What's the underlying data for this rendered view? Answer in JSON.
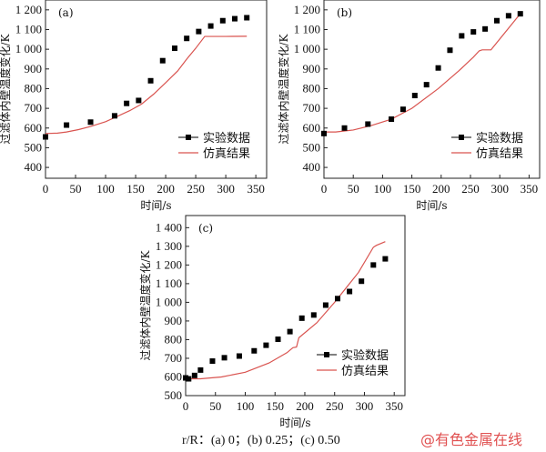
{
  "chart_data": [
    {
      "type": "scatter+line",
      "panel_label": "(a)",
      "xlabel": "时间/s",
      "ylabel": "过滤体内壁温度变化/K",
      "xlim": [
        0,
        368
      ],
      "ylim": [
        345,
        1250
      ],
      "xticks": [
        0,
        50,
        100,
        150,
        200,
        250,
        300,
        350
      ],
      "yticks": [
        400,
        500,
        600,
        700,
        800,
        900,
        1000,
        1100,
        1200
      ],
      "ytick_labels": [
        "400",
        "500",
        "600",
        "700",
        "800",
        "900",
        "1 000",
        "1 100",
        "1 200"
      ],
      "legend_position": "bottom-right",
      "series": [
        {
          "name": "实验数据",
          "kind": "scatter",
          "color": "#000000",
          "x": [
            0,
            35,
            75,
            115,
            135,
            155,
            175,
            195,
            215,
            235,
            255,
            275,
            295,
            315,
            335
          ],
          "y": [
            555,
            615,
            630,
            662,
            725,
            740,
            840,
            942,
            1005,
            1055,
            1090,
            1118,
            1145,
            1155,
            1160
          ]
        },
        {
          "name": "仿真结果",
          "kind": "line",
          "color": "#d9534f",
          "x": [
            0,
            20,
            35,
            55,
            75,
            100,
            120,
            140,
            160,
            180,
            200,
            220,
            235,
            250,
            265,
            300,
            335
          ],
          "y": [
            572,
            574,
            580,
            592,
            608,
            632,
            660,
            688,
            722,
            772,
            830,
            890,
            950,
            1005,
            1065,
            1065,
            1066
          ]
        }
      ]
    },
    {
      "type": "scatter+line",
      "panel_label": "(b)",
      "xlabel": "时间/s",
      "ylabel": "过滤体内壁温度变化/K",
      "xlim": [
        0,
        368
      ],
      "ylim": [
        345,
        1250
      ],
      "xticks": [
        0,
        50,
        100,
        150,
        200,
        250,
        300,
        350
      ],
      "yticks": [
        400,
        500,
        600,
        700,
        800,
        900,
        1000,
        1100,
        1200
      ],
      "ytick_labels": [
        "400",
        "500",
        "600",
        "700",
        "800",
        "900",
        "1 000",
        "1 100",
        "1 200"
      ],
      "legend_position": "bottom-right",
      "series": [
        {
          "name": "实验数据",
          "kind": "scatter",
          "color": "#000000",
          "x": [
            0,
            35,
            75,
            115,
            135,
            155,
            175,
            195,
            215,
            235,
            255,
            275,
            295,
            315,
            335
          ],
          "y": [
            572,
            600,
            620,
            645,
            695,
            765,
            820,
            905,
            995,
            1068,
            1088,
            1103,
            1145,
            1170,
            1180
          ]
        },
        {
          "name": "仿真结果",
          "kind": "line",
          "color": "#d9534f",
          "x": [
            0,
            20,
            50,
            80,
            115,
            150,
            195,
            230,
            255,
            265,
            270,
            285,
            335
          ],
          "y": [
            580,
            580,
            590,
            612,
            645,
            700,
            800,
            890,
            960,
            992,
            997,
            997,
            1180
          ]
        }
      ]
    },
    {
      "type": "scatter+line",
      "panel_label": "(c)",
      "xlabel": "时间/s",
      "ylabel": "过滤体内壁温度变化/K",
      "xlim": [
        0,
        368
      ],
      "ylim": [
        500,
        1465
      ],
      "xticks": [
        0,
        50,
        100,
        150,
        200,
        250,
        300,
        350
      ],
      "yticks": [
        500,
        600,
        700,
        800,
        900,
        1000,
        1100,
        1200,
        1300,
        1400
      ],
      "ytick_labels": [
        "500",
        "600",
        "700",
        "800",
        "900",
        "1 000",
        "1 100",
        "1 200",
        "1 300",
        "1 400"
      ],
      "legend_position": "bottom-right",
      "series": [
        {
          "name": "实验数据",
          "kind": "scatter",
          "color": "#000000",
          "x": [
            0,
            5,
            15,
            25,
            45,
            65,
            90,
            115,
            135,
            155,
            175,
            195,
            215,
            235,
            255,
            275,
            295,
            315,
            335
          ],
          "y": [
            595,
            590,
            608,
            637,
            685,
            703,
            712,
            740,
            770,
            802,
            843,
            915,
            932,
            985,
            1020,
            1058,
            1113,
            1200,
            1233
          ]
        },
        {
          "name": "仿真结果",
          "kind": "line",
          "color": "#d9534f",
          "x": [
            0,
            25,
            60,
            100,
            140,
            170,
            180,
            186,
            190,
            220,
            250,
            290,
            315,
            320,
            335
          ],
          "y": [
            590,
            590,
            600,
            625,
            675,
            730,
            757,
            760,
            810,
            890,
            1000,
            1160,
            1295,
            1305,
            1325
          ]
        }
      ]
    }
  ],
  "caption": "r/R：(a) 0；(b) 0.25；(c) 0.50",
  "watermark": "@有色金属在线"
}
